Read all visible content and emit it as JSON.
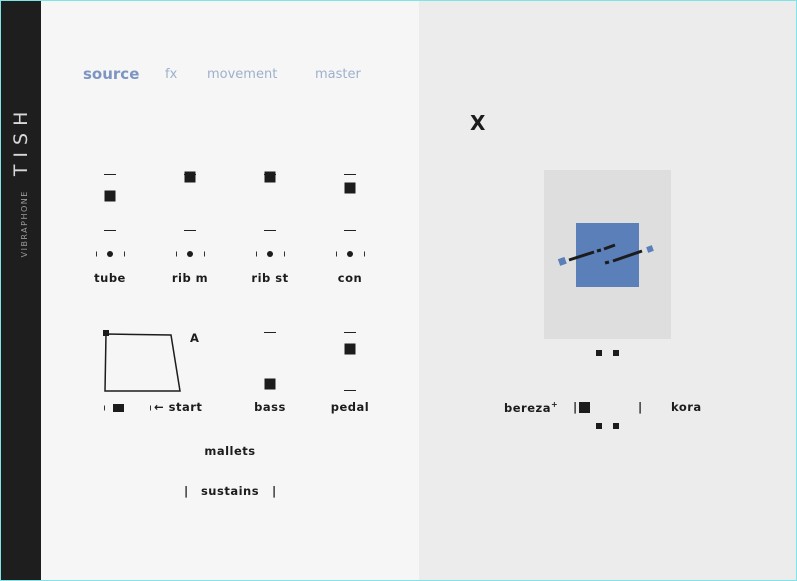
{
  "app": {
    "title": "TISH",
    "subtitle": "VIBRAPHONE"
  },
  "tabs": [
    {
      "label": "source",
      "active": true
    },
    {
      "label": "fx"
    },
    {
      "label": "movement"
    },
    {
      "label": "master"
    }
  ],
  "sliders": [
    {
      "label": "tube",
      "value": 0.6
    },
    {
      "label": "rib m",
      "value": 0.95
    },
    {
      "label": "rib st",
      "value": 0.95
    },
    {
      "label": "con",
      "value": 0.75
    }
  ],
  "envelope": {
    "label": "A",
    "start_label": "← start"
  },
  "bass": {
    "label": "bass",
    "value": 0.05
  },
  "pedal": {
    "label": "pedal",
    "value": 0.65
  },
  "mallets_label": "mallets",
  "sustains": {
    "label": "sustains",
    "bar": "|"
  },
  "close_label": "X",
  "xy_pad": {
    "accent": "#5b7fb9"
  },
  "morph": {
    "left_label": "bereza",
    "left_sup": "+",
    "right_label": "kora",
    "bar": "|"
  },
  "colors": {
    "sidebar": "#1e1e1e",
    "accent": "#7d95c2",
    "tab_inactive": "#9fb0cc",
    "pad": "#dedede"
  }
}
